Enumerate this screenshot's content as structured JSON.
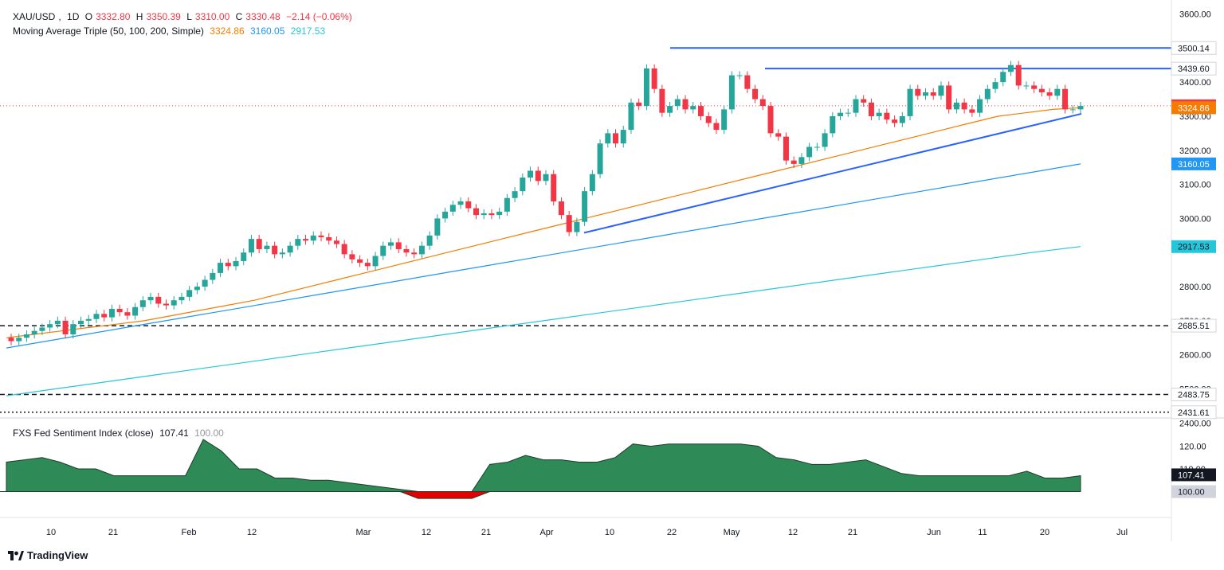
{
  "header": {
    "symbol": "XAU/USD",
    "interval": "1D",
    "open_label": "O",
    "open": "3332.80",
    "high_label": "H",
    "high": "3350.39",
    "low_label": "L",
    "low": "3310.00",
    "close_label": "C",
    "close": "3330.48",
    "change": "−2.14 (−0.06%)",
    "ma_title": "Moving Average Triple (50, 100, 200, Simple)",
    "ma50": "3324.86",
    "ma100": "3160.05",
    "ma200": "2917.53"
  },
  "sentiment": {
    "title": "FXS Fed Sentiment Index (close)",
    "value": "107.41",
    "baseline": "100.00"
  },
  "footer": {
    "brand": "TradingView"
  },
  "colors": {
    "up": "#26a69a",
    "down": "#f23645",
    "ma50": "#f57c00",
    "ma100": "#2196f3",
    "ma200": "#26c6da",
    "resistance": "#2962ff",
    "area_up": "#2e8b57",
    "area_down": "#e60000"
  },
  "chart_data": {
    "type": "candlestick",
    "price_ticks": [
      "3600.00",
      "3400.00",
      "3300.00",
      "3200.00",
      "3100.00",
      "3000.00",
      "2800.00",
      "2700.00",
      "2600.00",
      "2500.00",
      "2400.00"
    ],
    "x_ticks": [
      "10",
      "21",
      "Feb",
      "12",
      "Mar",
      "12",
      "21",
      "Apr",
      "10",
      "22",
      "May",
      "12",
      "21",
      "Jun",
      "11",
      "20",
      "Jul"
    ],
    "price_labels": [
      {
        "value": 3500.14,
        "text": "3500.14",
        "kind": "level"
      },
      {
        "value": 3439.6,
        "text": "3439.60",
        "kind": "level"
      },
      {
        "value": 3330.48,
        "text": "3330.48",
        "kind": "last"
      },
      {
        "value": 3324.86,
        "text": "3324.86",
        "kind": "ma50"
      },
      {
        "value": 3160.05,
        "text": "3160.05",
        "kind": "ma100"
      },
      {
        "value": 2917.53,
        "text": "2917.53",
        "kind": "ma200"
      },
      {
        "value": 2685.51,
        "text": "2685.51",
        "kind": "dashed"
      },
      {
        "value": 2483.75,
        "text": "2483.75",
        "kind": "dashed"
      },
      {
        "value": 2431.61,
        "text": "2431.61",
        "kind": "dotted"
      }
    ],
    "sentiment_ticks": [
      "120.00",
      "110.00"
    ],
    "sentiment_labels": [
      {
        "value": 107.41,
        "text": "107.41",
        "kind": "last"
      },
      {
        "value": 100.0,
        "text": "100.00",
        "kind": "base"
      }
    ],
    "closes": [
      2640,
      2650,
      2660,
      2670,
      2680,
      2690,
      2700,
      2660,
      2690,
      2700,
      2705,
      2720,
      2710,
      2735,
      2725,
      2715,
      2740,
      2760,
      2770,
      2750,
      2745,
      2760,
      2770,
      2790,
      2800,
      2820,
      2840,
      2870,
      2860,
      2875,
      2900,
      2940,
      2910,
      2920,
      2895,
      2900,
      2920,
      2940,
      2935,
      2950,
      2945,
      2935,
      2925,
      2895,
      2880,
      2870,
      2860,
      2890,
      2920,
      2930,
      2910,
      2900,
      2895,
      2920,
      2950,
      3000,
      3020,
      3040,
      3050,
      3030,
      3010,
      3015,
      3010,
      3020,
      3060,
      3080,
      3120,
      3140,
      3110,
      3130,
      3050,
      3010,
      2960,
      2990,
      3080,
      3130,
      3220,
      3250,
      3220,
      3260,
      3340,
      3330,
      3440,
      3380,
      3310,
      3330,
      3350,
      3320,
      3330,
      3300,
      3280,
      3260,
      3320,
      3420,
      3420,
      3380,
      3350,
      3330,
      3250,
      3240,
      3170,
      3160,
      3180,
      3210,
      3210,
      3250,
      3300,
      3310,
      3310,
      3350,
      3340,
      3300,
      3310,
      3290,
      3280,
      3300,
      3380,
      3360,
      3370,
      3360,
      3390,
      3320,
      3340,
      3320,
      3310,
      3350,
      3380,
      3400,
      3430,
      3450,
      3390,
      3390,
      3380,
      3370,
      3360,
      3380,
      3320,
      3320,
      3330
    ],
    "ma50": [
      2650,
      2660,
      2670,
      2680,
      2690,
      2700,
      2715,
      2730,
      2745,
      2760,
      2780,
      2800,
      2820,
      2840,
      2860,
      2880,
      2900,
      2920,
      2940,
      2960,
      2980,
      3000,
      3020,
      3040,
      3060,
      3080,
      3100,
      3120,
      3140,
      3160,
      3180,
      3200,
      3220,
      3240,
      3260,
      3280,
      3300,
      3310,
      3320,
      3325
    ],
    "ma100": [
      2620,
      2640,
      2660,
      2680,
      2700,
      2720,
      2740,
      2760,
      2780,
      2800,
      2820,
      2840,
      2860,
      2880,
      2900,
      2920,
      2940,
      2960,
      2980,
      3000,
      3020,
      3040,
      3060,
      3080,
      3100,
      3120,
      3140,
      3160
    ],
    "ma200": [
      2480,
      2500,
      2520,
      2540,
      2560,
      2580,
      2600,
      2620,
      2640,
      2660,
      2680,
      2700,
      2720,
      2740,
      2760,
      2780,
      2800,
      2820,
      2840,
      2860,
      2880,
      2900,
      2917.53
    ],
    "sentiment": [
      113,
      114,
      115,
      113,
      110,
      110,
      107,
      107,
      107,
      107,
      107,
      123,
      118,
      110,
      110,
      106,
      106,
      105,
      105,
      104,
      103,
      102,
      101,
      97,
      97,
      97,
      97,
      112,
      113,
      116,
      114,
      114,
      113,
      113,
      115,
      121,
      120,
      121,
      121,
      121,
      121,
      121,
      120,
      115,
      114,
      112,
      112,
      113,
      114,
      111,
      108,
      107,
      107,
      107,
      107,
      107,
      107,
      109,
      106,
      106,
      107
    ]
  }
}
